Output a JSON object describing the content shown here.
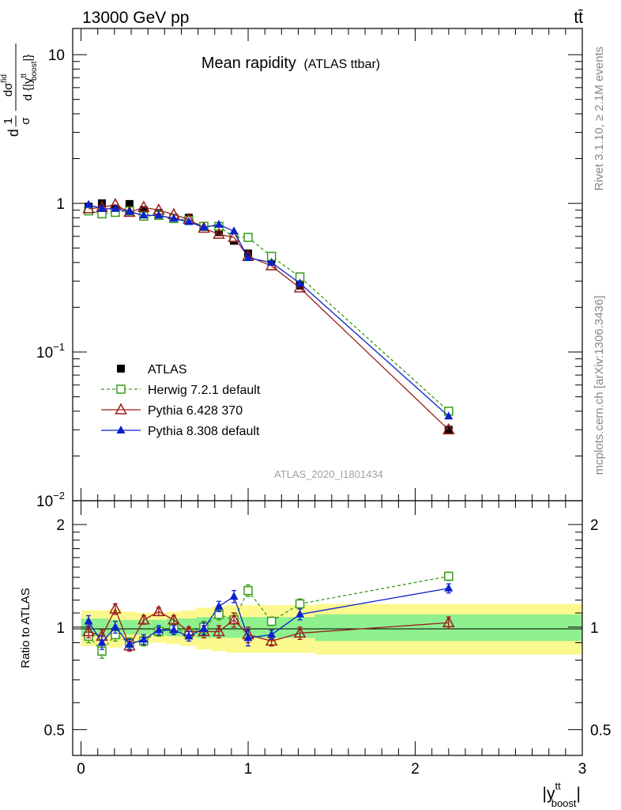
{
  "header": {
    "energy_label": "13000 GeV pp",
    "process_label": "tt̄"
  },
  "side_labels": {
    "rivet": "Rivet 3.1.10, ≥ 2.1M events",
    "mcplots": "mcplots.cern.ch [arXiv:1306.3436]"
  },
  "chart_data": [
    {
      "type": "line",
      "panel": "main",
      "title": "Mean rapidity",
      "subtitle": "(ATLAS ttbar)",
      "analysis_id": "ATLAS_2020_I1801434",
      "yscale": "log",
      "ylim": [
        0.01,
        15
      ],
      "xlim": [
        -0.05,
        3.0
      ],
      "ylabel_parts": {
        "frac1_num": "1",
        "frac1_den": "σ",
        "frac2_num": "dσ",
        "frac2_sup": "fid",
        "frac2_den": "d {|y",
        "den_sup": "tt",
        "den_sub": "boost",
        "den_close": "|}",
        "d_prefix": "d"
      },
      "y_ticks": [
        {
          "value": 10,
          "base": "10",
          "exp": ""
        },
        {
          "value": 1,
          "base": "1",
          "exp": ""
        },
        {
          "value": 0.1,
          "base": "10",
          "exp": "−1"
        },
        {
          "value": 0.01,
          "base": "10",
          "exp": "−2"
        }
      ],
      "x": [
        0.045,
        0.125,
        0.205,
        0.29,
        0.375,
        0.465,
        0.555,
        0.645,
        0.735,
        0.825,
        0.915,
        1.0,
        1.14,
        1.31,
        2.2
      ],
      "legend": [
        {
          "name": "ATLAS",
          "color": "#000000",
          "marker": "square-filled",
          "dash": ""
        },
        {
          "name": "Herwig 7.2.1 default",
          "color": "#3a9a1a",
          "marker": "square-open",
          "dash": "4,3"
        },
        {
          "name": "Pythia 6.428 370",
          "color": "#9b1c1c",
          "marker": "triangle-open",
          "dash": ""
        },
        {
          "name": "Pythia 8.308 default",
          "color": "#0a22cc",
          "marker": "triangle-filled",
          "dash": ""
        }
      ],
      "series": [
        {
          "name": "ATLAS",
          "values": [
            0.95,
            1.0,
            0.92,
            0.99,
            0.9,
            0.86,
            0.8,
            0.8,
            0.7,
            0.64,
            0.56,
            0.46,
            0.42,
            0.28,
            0.03
          ]
        },
        {
          "name": "Herwig 7.2.1 default",
          "values": [
            0.89,
            0.85,
            0.87,
            0.89,
            0.82,
            0.83,
            0.79,
            0.77,
            0.7,
            0.7,
            0.59,
            0.59,
            0.44,
            0.32,
            0.04
          ]
        },
        {
          "name": "Pythia 6.428 370",
          "values": [
            0.92,
            0.94,
            0.98,
            0.87,
            0.94,
            0.9,
            0.84,
            0.78,
            0.68,
            0.62,
            0.59,
            0.44,
            0.38,
            0.27,
            0.03
          ]
        },
        {
          "name": "Pythia 8.308 default",
          "values": [
            0.98,
            0.92,
            0.92,
            0.88,
            0.83,
            0.83,
            0.79,
            0.75,
            0.69,
            0.72,
            0.65,
            0.43,
            0.4,
            0.29,
            0.037
          ]
        }
      ]
    },
    {
      "type": "line",
      "panel": "ratio",
      "ylabel": "Ratio to ATLAS",
      "xlabel_parts": {
        "left": "|y",
        "sup": "tt",
        "sub": "boost",
        "right": "|"
      },
      "yscale": "log",
      "ylim": [
        0.42,
        2.35
      ],
      "xlim": [
        -0.05,
        3.0
      ],
      "y_ticks": [
        {
          "value": 2,
          "label": "2"
        },
        {
          "value": 1,
          "label": "1"
        },
        {
          "value": 0.5,
          "label": "0.5"
        }
      ],
      "x_ticks": [
        {
          "value": 0,
          "label": "0"
        },
        {
          "value": 1,
          "label": "1"
        },
        {
          "value": 2,
          "label": "2"
        },
        {
          "value": 3,
          "label": "3"
        }
      ],
      "bands": {
        "edges": [
          0.0,
          0.085,
          0.165,
          0.245,
          0.335,
          0.42,
          0.51,
          0.6,
          0.69,
          0.78,
          0.87,
          0.96,
          1.06,
          1.22,
          1.4,
          3.0
        ],
        "inner": [
          0.06,
          0.06,
          0.05,
          0.05,
          0.05,
          0.05,
          0.06,
          0.06,
          0.07,
          0.07,
          0.07,
          0.07,
          0.07,
          0.07,
          0.09
        ],
        "outer": [
          0.12,
          0.12,
          0.13,
          0.11,
          0.1,
          0.1,
          0.11,
          0.12,
          0.14,
          0.15,
          0.16,
          0.16,
          0.16,
          0.16,
          0.17
        ],
        "inner_color": "#8ef08e",
        "outer_color": "#fbf98e"
      },
      "x": [
        0.045,
        0.125,
        0.205,
        0.29,
        0.375,
        0.465,
        0.555,
        0.645,
        0.735,
        0.825,
        0.915,
        1.0,
        1.14,
        1.31,
        2.2
      ],
      "series": [
        {
          "name": "Herwig 7.2.1 default",
          "values": [
            0.94,
            0.85,
            0.95,
            0.9,
            0.91,
            0.97,
            0.99,
            0.96,
            1.0,
            1.09,
            1.05,
            1.28,
            1.04,
            1.17,
            1.41
          ],
          "err": [
            0.04,
            0.04,
            0.04,
            0.03,
            0.03,
            0.03,
            0.03,
            0.03,
            0.04,
            0.04,
            0.05,
            0.05,
            0.03,
            0.04,
            0.04
          ]
        },
        {
          "name": "Pythia 6.428 370",
          "values": [
            0.97,
            0.94,
            1.13,
            0.88,
            1.05,
            1.11,
            1.05,
            0.97,
            0.97,
            0.97,
            1.05,
            0.95,
            0.91,
            0.96,
            1.03
          ],
          "err": [
            0.04,
            0.04,
            0.04,
            0.03,
            0.03,
            0.03,
            0.03,
            0.03,
            0.04,
            0.04,
            0.05,
            0.05,
            0.03,
            0.04,
            0.04
          ]
        },
        {
          "name": "Pythia 8.308 default",
          "values": [
            1.04,
            0.9,
            1.0,
            0.89,
            0.92,
            0.98,
            0.98,
            0.94,
            0.99,
            1.15,
            1.23,
            0.93,
            0.95,
            1.09,
            1.3
          ],
          "err": [
            0.04,
            0.04,
            0.04,
            0.03,
            0.03,
            0.03,
            0.03,
            0.03,
            0.04,
            0.04,
            0.05,
            0.05,
            0.03,
            0.04,
            0.04
          ]
        }
      ]
    }
  ]
}
